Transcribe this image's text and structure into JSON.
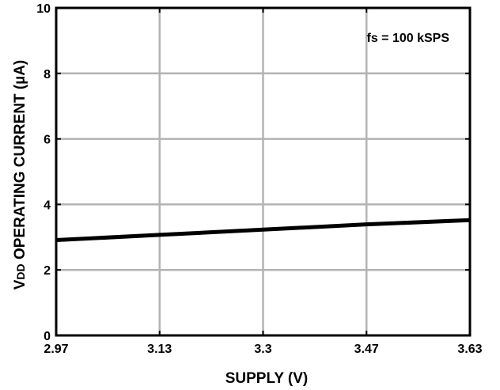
{
  "chart_data": {
    "type": "line",
    "xlabel": "SUPPLY (V)",
    "ylabel_main": "V",
    "ylabel_sub": "DD",
    "ylabel_rest": " OPERATING CURRENT (µA)",
    "annotation": "fs = 100 kSPS",
    "x_ticks": [
      "2.97",
      "3.13",
      "3.3",
      "3.47",
      "3.63"
    ],
    "x_tick_values": [
      2.97,
      3.135,
      3.3,
      3.465,
      3.63
    ],
    "y_ticks": [
      "0",
      "2",
      "4",
      "6",
      "8",
      "10"
    ],
    "y_tick_values": [
      0,
      2,
      4,
      6,
      8,
      10
    ],
    "xlim": [
      2.97,
      3.63
    ],
    "ylim": [
      0,
      10
    ],
    "grid": true,
    "series": [
      {
        "x": [
          2.97,
          3.135,
          3.3,
          3.465,
          3.63
        ],
        "y": [
          2.91,
          3.07,
          3.23,
          3.39,
          3.52
        ]
      }
    ]
  }
}
